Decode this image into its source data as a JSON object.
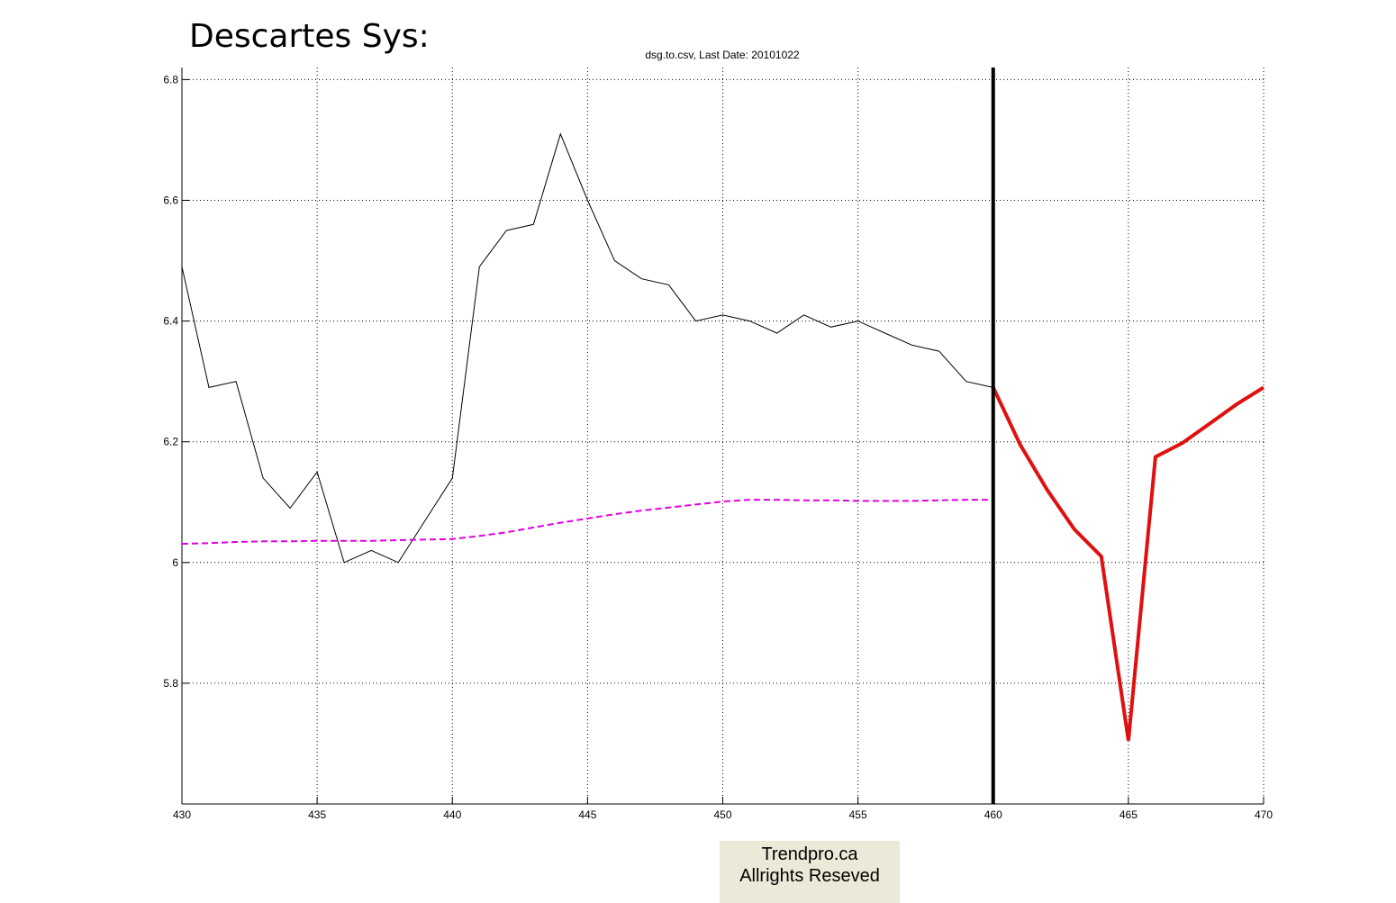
{
  "header": {
    "title": "Descartes Sys:"
  },
  "watermark": {
    "line1": "Trendpro.ca",
    "line2": "Allrights Reseved"
  },
  "colors": {
    "price": "#000000",
    "average": "#e000e0",
    "forecast": "#e01010",
    "divider": "#000000",
    "grid": "#000000",
    "watermark_bg": "#ece9d8"
  },
  "chart_data": {
    "type": "line",
    "title": "dsg.to.csv, Last Date: 20101022",
    "xlabel": "",
    "ylabel": "",
    "xlim": [
      430,
      470
    ],
    "ylim": [
      5.6,
      6.82
    ],
    "xticks": [
      430,
      435,
      440,
      445,
      450,
      455,
      460,
      465,
      470
    ],
    "yticks": [
      5.8,
      6,
      6.2,
      6.4,
      6.6,
      6.8
    ],
    "ytick_labels": [
      "5.8",
      "6",
      "6.2",
      "6.4",
      "6.6",
      "6.8"
    ],
    "grid": true,
    "divider_x": 460,
    "series": [
      {
        "style": "solid-thin",
        "x": [
          430,
          431,
          432,
          433,
          434,
          435,
          436,
          437,
          438,
          439,
          440,
          441,
          442,
          443,
          444,
          445,
          446,
          447,
          448,
          449,
          450,
          451,
          452,
          453,
          454,
          455,
          456,
          457,
          458,
          459,
          460
        ],
        "y": [
          6.49,
          6.29,
          6.3,
          6.14,
          6.09,
          6.15,
          6.0,
          6.02,
          6.0,
          6.07,
          6.14,
          6.49,
          6.55,
          6.56,
          6.71,
          6.6,
          6.5,
          6.47,
          6.46,
          6.4,
          6.41,
          6.4,
          6.38,
          6.41,
          6.39,
          6.4,
          6.38,
          6.36,
          6.35,
          6.3,
          6.29
        ]
      },
      {
        "style": "dashed",
        "x": [
          430,
          431,
          432,
          433,
          434,
          435,
          436,
          437,
          438,
          439,
          440,
          441,
          442,
          443,
          444,
          445,
          446,
          447,
          448,
          449,
          450,
          451,
          452,
          453,
          454,
          455,
          456,
          457,
          458,
          459,
          460
        ],
        "y": [
          6.031,
          6.032,
          6.034,
          6.035,
          6.035,
          6.036,
          6.036,
          6.036,
          6.037,
          6.038,
          6.039,
          6.044,
          6.05,
          6.058,
          6.066,
          6.073,
          6.08,
          6.086,
          6.091,
          6.096,
          6.101,
          6.104,
          6.104,
          6.103,
          6.103,
          6.102,
          6.102,
          6.102,
          6.103,
          6.104,
          6.104
        ]
      },
      {
        "style": "solid-thick",
        "x": [
          460,
          461,
          462,
          463,
          464,
          465,
          466,
          467,
          468,
          469,
          470
        ],
        "y": [
          6.29,
          6.195,
          6.12,
          6.055,
          6.01,
          5.705,
          6.175,
          6.198,
          6.23,
          6.262,
          6.29
        ]
      }
    ]
  }
}
